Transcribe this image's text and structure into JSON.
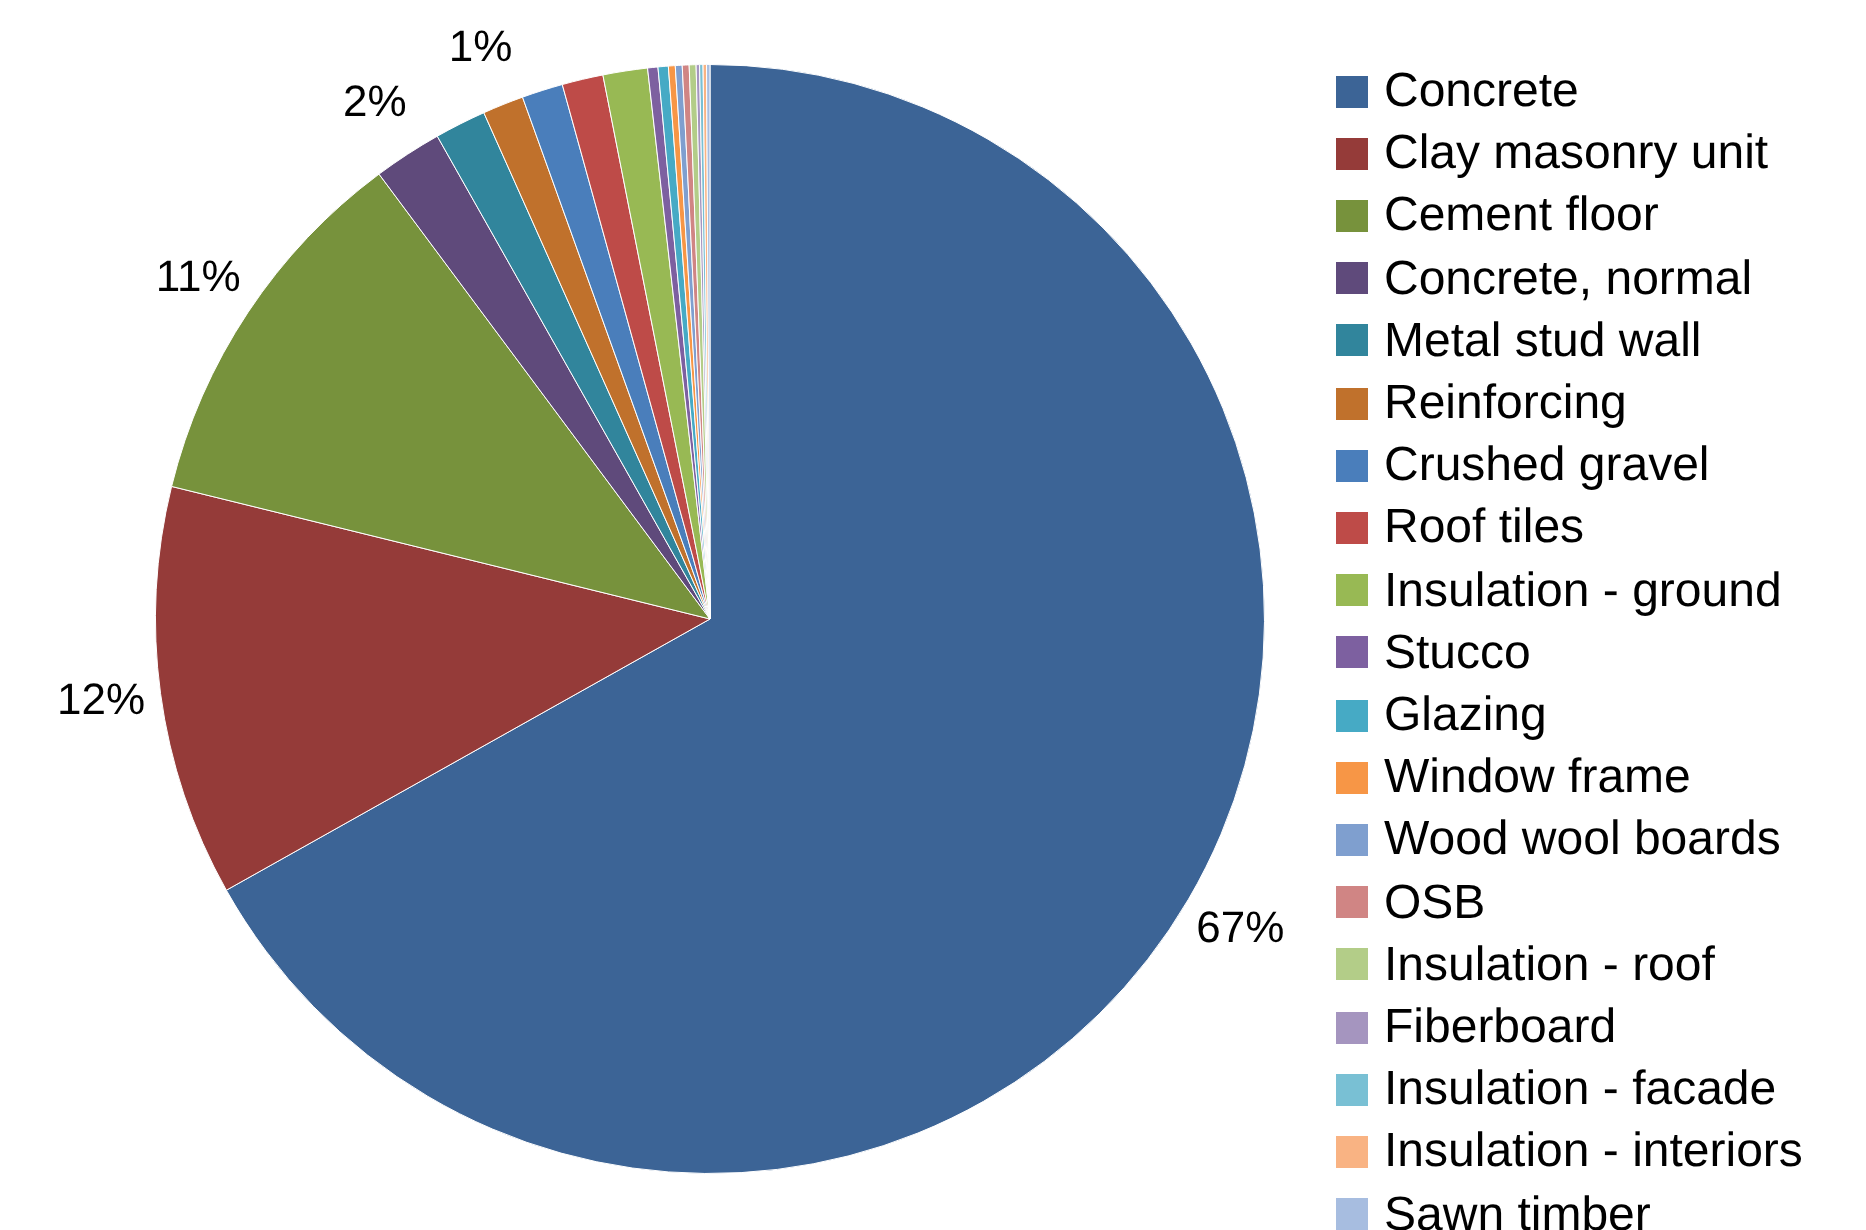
{
  "chart_data": {
    "type": "pie",
    "categories": [
      "Concrete",
      "Clay masonry unit",
      "Cement floor",
      "Concrete, normal",
      "Metal stud wall",
      "Reinforcing",
      "Crushed gravel",
      "Roof tiles",
      "Insulation - ground",
      "Stucco",
      "Glazing",
      "Window frame",
      "Wood wool boards",
      "OSB",
      "Insulation - roof",
      "Fiberboard",
      "Insulation - facade",
      "Insulation - interiors",
      "Sawn timber"
    ],
    "values": [
      67,
      12,
      11,
      2,
      1.5,
      1.2,
      1.2,
      1.2,
      1.3,
      0.3,
      0.3,
      0.2,
      0.2,
      0.2,
      0.2,
      0.1,
      0.1,
      0.1,
      0.1
    ],
    "colors": [
      "#3c6496",
      "#953b39",
      "#77923c",
      "#5f4a7b",
      "#31859c",
      "#c0712c",
      "#4a7ebb",
      "#be4b48",
      "#98b954",
      "#7d60a0",
      "#46aac5",
      "#f79646",
      "#7f9fcf",
      "#d08584",
      "#b3cd88",
      "#a595bf",
      "#79c0d4",
      "#f9b383",
      "#a7bde0"
    ],
    "value_labels": [
      "67%",
      "12%",
      "11%",
      "2%",
      null,
      "1%",
      null,
      null,
      null,
      null,
      null,
      null,
      null,
      null,
      null,
      null,
      null,
      null,
      null
    ],
    "legend": "right"
  }
}
